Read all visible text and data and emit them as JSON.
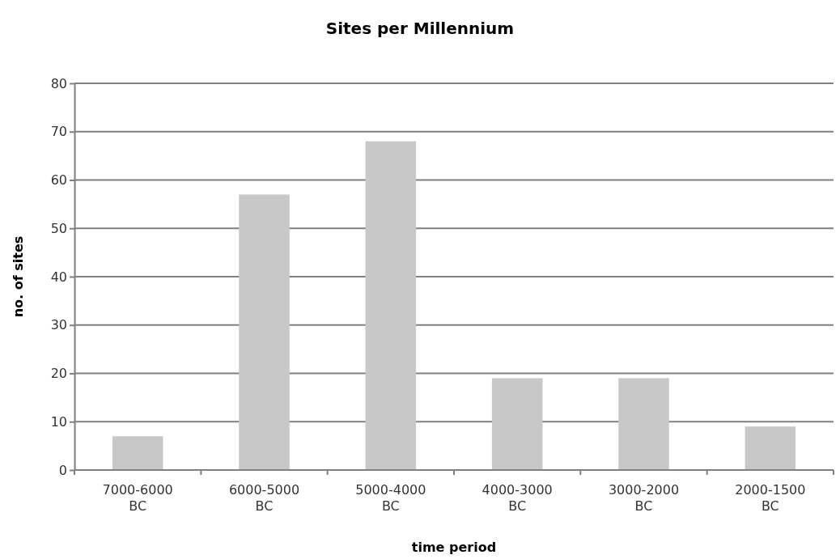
{
  "chart_data": {
    "type": "bar",
    "title": "Sites per Millennium",
    "xlabel": "time period",
    "ylabel": "no. of sites",
    "categories": [
      "7000-6000 BC",
      "6000-5000 BC",
      "5000-4000 BC",
      "4000-3000 BC",
      "3000-2000 BC",
      "2000-1500 BC"
    ],
    "values": [
      7,
      57,
      68,
      19,
      19,
      9
    ],
    "color": "#c8c8c8",
    "ylim": [
      0,
      80
    ],
    "yticks": [
      0,
      10,
      20,
      30,
      40,
      50,
      60,
      70,
      80
    ],
    "grid": "y"
  }
}
